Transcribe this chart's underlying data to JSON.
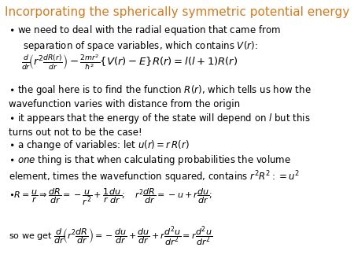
{
  "title": "Incorporating the spherically symmetric potential energy",
  "title_color": "#D47A1F",
  "background_color": "#ffffff",
  "title_fontsize": 11.0,
  "body_fontsize": 8.5,
  "eq_fontsize": 9.5,
  "small_eq_fontsize": 8.0
}
